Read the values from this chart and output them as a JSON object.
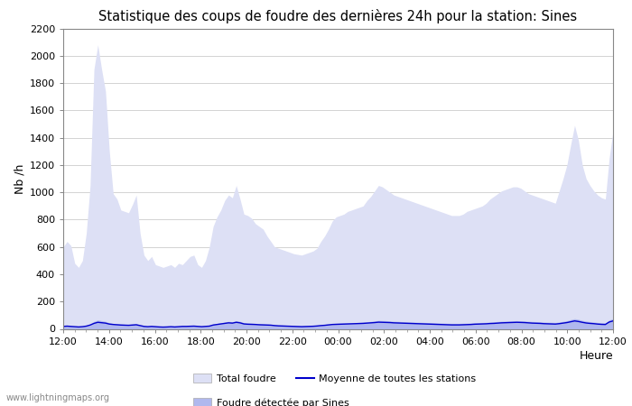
{
  "title": "Statistique des coups de foudre des dernières 24h pour la station: Sines",
  "xlabel": "Heure",
  "ylabel": "Nb /h",
  "ylim": [
    0,
    2200
  ],
  "yticks": [
    0,
    200,
    400,
    600,
    800,
    1000,
    1200,
    1400,
    1600,
    1800,
    2000,
    2200
  ],
  "xtick_labels": [
    "12:00",
    "14:00",
    "16:00",
    "18:00",
    "20:00",
    "22:00",
    "00:00",
    "02:00",
    "04:00",
    "06:00",
    "08:00",
    "10:00",
    "12:00"
  ],
  "bg_color": "#ffffff",
  "fill_total_color": "#dde0f5",
  "fill_sines_color": "#b0b8ee",
  "line_color": "#0000cc",
  "watermark": "www.lightningmaps.org",
  "total_foudre": [
    600,
    640,
    610,
    480,
    450,
    500,
    700,
    1050,
    1900,
    2080,
    1900,
    1740,
    1300,
    990,
    950,
    870,
    860,
    850,
    910,
    980,
    700,
    540,
    500,
    530,
    470,
    460,
    450,
    460,
    470,
    450,
    480,
    470,
    500,
    530,
    540,
    470,
    450,
    500,
    600,
    750,
    820,
    870,
    940,
    980,
    960,
    1050,
    950,
    840,
    830,
    810,
    770,
    750,
    730,
    680,
    640,
    600,
    590,
    580,
    570,
    560,
    550,
    545,
    540,
    550,
    560,
    570,
    590,
    640,
    680,
    730,
    790,
    820,
    830,
    840,
    860,
    870,
    880,
    890,
    900,
    940,
    970,
    1010,
    1050,
    1040,
    1020,
    1000,
    980,
    970,
    960,
    950,
    940,
    930,
    920,
    910,
    900,
    890,
    880,
    870,
    860,
    850,
    840,
    830,
    830,
    830,
    840,
    860,
    870,
    880,
    890,
    900,
    920,
    950,
    970,
    990,
    1010,
    1020,
    1030,
    1040,
    1040,
    1030,
    1010,
    990,
    980,
    970,
    960,
    950,
    940,
    930,
    920,
    1010,
    1100,
    1200,
    1350,
    1490,
    1380,
    1200,
    1100,
    1050,
    1010,
    980,
    960,
    950,
    1250,
    1450
  ],
  "sines_foudre": [
    20,
    22,
    20,
    18,
    16,
    18,
    25,
    35,
    55,
    65,
    60,
    55,
    45,
    40,
    38,
    35,
    33,
    32,
    35,
    38,
    28,
    22,
    20,
    22,
    20,
    18,
    17,
    18,
    20,
    18,
    20,
    22,
    22,
    24,
    25,
    22,
    20,
    22,
    25,
    35,
    40,
    45,
    50,
    55,
    52,
    60,
    55,
    45,
    43,
    42,
    40,
    38,
    37,
    35,
    33,
    30,
    28,
    27,
    26,
    25,
    24,
    23,
    22,
    23,
    24,
    25,
    27,
    30,
    33,
    36,
    40,
    42,
    43,
    44,
    45,
    46,
    47,
    48,
    50,
    52,
    55,
    58,
    62,
    61,
    60,
    58,
    56,
    55,
    53,
    52,
    51,
    50,
    49,
    48,
    47,
    46,
    45,
    44,
    43,
    42,
    41,
    40,
    40,
    40,
    41,
    42,
    43,
    45,
    46,
    47,
    48,
    50,
    52,
    54,
    56,
    57,
    58,
    59,
    60,
    59,
    58,
    56,
    54,
    53,
    52,
    50,
    49,
    48,
    47,
    50,
    55,
    60,
    68,
    75,
    70,
    62,
    57,
    53,
    50,
    47,
    45,
    44,
    65,
    75
  ],
  "moyenne": [
    18,
    20,
    18,
    16,
    14,
    16,
    20,
    28,
    40,
    48,
    45,
    42,
    35,
    32,
    30,
    28,
    27,
    26,
    28,
    30,
    24,
    18,
    16,
    18,
    16,
    14,
    13,
    14,
    16,
    14,
    16,
    18,
    18,
    19,
    20,
    18,
    16,
    18,
    20,
    28,
    32,
    36,
    40,
    44,
    42,
    48,
    44,
    36,
    34,
    33,
    32,
    30,
    29,
    28,
    27,
    24,
    22,
    21,
    20,
    19,
    18,
    17,
    16,
    17,
    18,
    19,
    21,
    24,
    26,
    29,
    32,
    33,
    34,
    35,
    36,
    37,
    38,
    39,
    40,
    42,
    44,
    46,
    49,
    48,
    47,
    46,
    44,
    43,
    42,
    41,
    40,
    39,
    38,
    37,
    36,
    35,
    34,
    33,
    32,
    31,
    30,
    29,
    29,
    29,
    30,
    31,
    32,
    34,
    35,
    36,
    37,
    39,
    40,
    42,
    44,
    45,
    46,
    47,
    48,
    47,
    46,
    44,
    42,
    41,
    40,
    38,
    37,
    36,
    35,
    38,
    42,
    46,
    52,
    58,
    54,
    48,
    43,
    40,
    38,
    35,
    33,
    32,
    50,
    58
  ]
}
